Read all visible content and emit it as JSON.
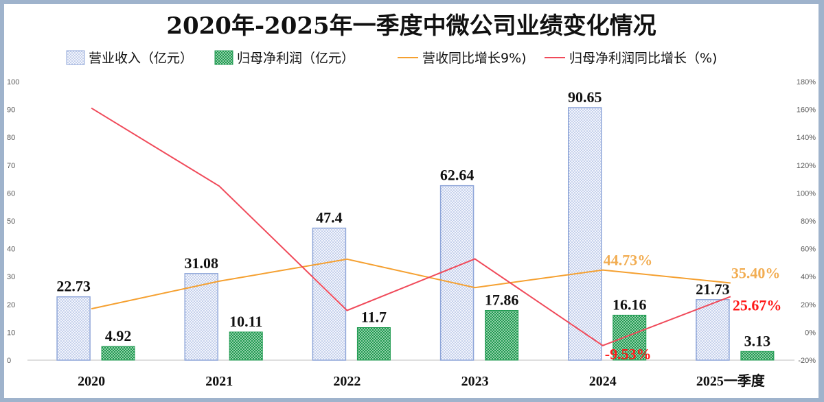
{
  "chart_data": {
    "type": "bar",
    "title": "2020年-2025年一季度中微公司业绩变化情况",
    "categories": [
      "2020",
      "2021",
      "2022",
      "2023",
      "2024",
      "2025一季度"
    ],
    "series": [
      {
        "name": "营业收入（亿元）",
        "kind": "bar",
        "axis": "left",
        "values": [
          22.73,
          31.08,
          47.4,
          62.64,
          90.65,
          21.73
        ],
        "labels": [
          "22.73",
          "31.08",
          "47.4",
          "62.64",
          "90.65",
          "21.73"
        ]
      },
      {
        "name": "归母净利润（亿元）",
        "kind": "bar",
        "axis": "left",
        "values": [
          4.92,
          10.11,
          11.7,
          17.86,
          16.16,
          3.13
        ],
        "labels": [
          "4.92",
          "10.11",
          "11.7",
          "17.86",
          "16.16",
          "3.13"
        ]
      },
      {
        "name": "营收同比增长9%)",
        "kind": "line",
        "axis": "right",
        "values": [
          16.9,
          36.7,
          52.5,
          32.1,
          44.73,
          35.4
        ],
        "labels": [
          "",
          "",
          "",
          "",
          "44.73%",
          "35.40%"
        ]
      },
      {
        "name": "归母净利润同比增长（%)",
        "kind": "line",
        "axis": "right",
        "values": [
          161,
          105,
          15.7,
          52.7,
          -9.53,
          25.67
        ],
        "labels": [
          "",
          "",
          "",
          "",
          "-9.53%",
          "25.67%"
        ]
      }
    ],
    "y_left": {
      "min": 0,
      "max": 100,
      "ticks": [
        "0",
        "10",
        "20",
        "30",
        "40",
        "50",
        "60",
        "70",
        "80",
        "90",
        "100"
      ]
    },
    "y_right": {
      "min": -20,
      "max": 180,
      "ticks": [
        "-20%",
        "0%",
        "20%",
        "40%",
        "60%",
        "80%",
        "100%",
        "120%",
        "140%",
        "160%",
        "180%"
      ]
    },
    "grid": false,
    "legend": "top",
    "colors": {
      "revenue_bar": "#8fa6d9",
      "profit_bar": "#1f9a50",
      "revenue_line": "#f5a030",
      "profit_line": "#f04a5a",
      "revenue_label": "#f2ad52",
      "profit_label": "#ff1a1a"
    }
  }
}
